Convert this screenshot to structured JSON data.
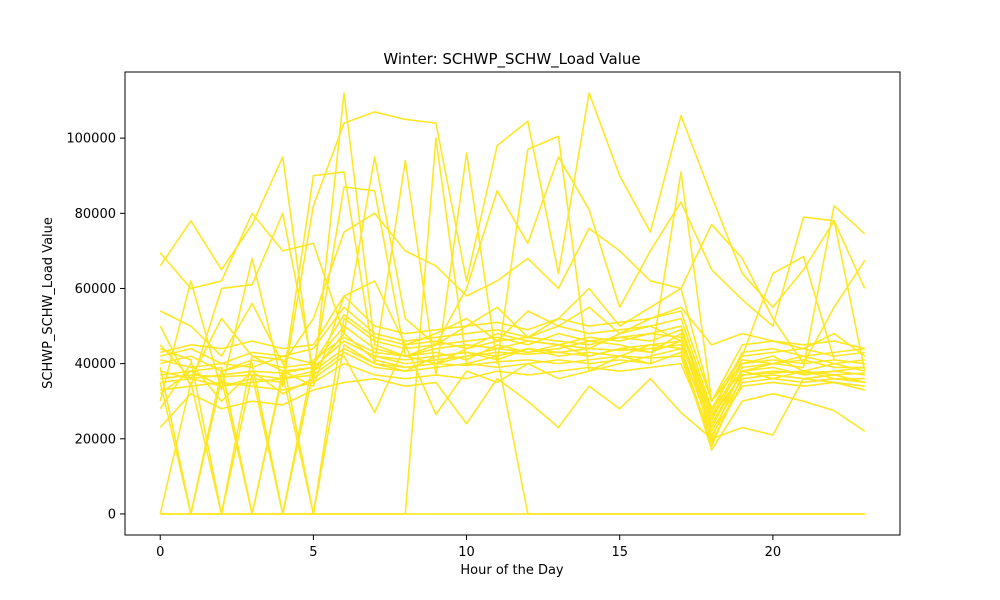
{
  "chart_data": {
    "type": "line",
    "title": "Winter: SCHWP_SCHW_Load Value",
    "xlabel": "Hour of the Day",
    "ylabel": "SCHWP_SCHW_Load Value",
    "xlim": [
      -1.15,
      24.15
    ],
    "ylim": [
      -5600,
      117600
    ],
    "x_ticks": [
      0,
      5,
      10,
      15,
      20
    ],
    "y_ticks": [
      0,
      20000,
      40000,
      60000,
      80000,
      100000
    ],
    "x": [
      0,
      1,
      2,
      3,
      4,
      5,
      6,
      7,
      8,
      9,
      10,
      11,
      12,
      13,
      14,
      15,
      16,
      17,
      18,
      19,
      20,
      21,
      22,
      23
    ],
    "line_color": "#fde725",
    "grid": false,
    "legend": "none",
    "series": [
      {
        "values": [
          38000,
          36000,
          37000,
          38000,
          37500,
          39000,
          46000,
          42000,
          40000,
          41000,
          42000,
          43000,
          42500,
          43000,
          44000,
          43500,
          44000,
          45000,
          26000,
          37000,
          38000,
          37500,
          38000,
          37000
        ]
      },
      {
        "values": [
          69500,
          60000,
          62000,
          80000,
          70000,
          72000,
          48000,
          95000,
          52000,
          45000,
          50000,
          55000,
          47000,
          52000,
          60000,
          50000,
          55000,
          60000,
          30000,
          40000,
          42000,
          38000,
          40000,
          38000
        ]
      },
      {
        "values": [
          66000,
          78000,
          65000,
          77000,
          95000,
          35000,
          112000,
          45000,
          42000,
          40000,
          44000,
          48000,
          46000,
          45000,
          44000,
          48000,
          50000,
          46000,
          28000,
          38000,
          40000,
          39000,
          82000,
          74500
        ]
      },
      {
        "values": [
          0,
          0,
          0,
          0,
          0,
          0,
          0,
          0,
          0,
          100000,
          40000,
          42000,
          0,
          0,
          0,
          0,
          0,
          0,
          0,
          0,
          0,
          0,
          0,
          0
        ]
      },
      {
        "values": [
          0,
          0,
          0,
          0,
          0,
          0,
          0,
          0,
          0,
          0,
          0,
          0,
          0,
          0,
          0,
          0,
          0,
          0,
          0,
          0,
          0,
          0,
          0,
          0
        ]
      },
      {
        "values": [
          35000,
          0,
          36000,
          0,
          37000,
          0,
          45000,
          40000,
          38000,
          42000,
          43000,
          41000,
          44000,
          42000,
          43000,
          42000,
          45000,
          44000,
          22000,
          36000,
          37000,
          36000,
          37000,
          35000
        ]
      },
      {
        "values": [
          0,
          35000,
          0,
          37000,
          0,
          38000,
          48000,
          41000,
          39000,
          40000,
          42000,
          44000,
          43000,
          45000,
          42000,
          44000,
          43000,
          46000,
          24000,
          38000,
          36000,
          38000,
          36000,
          36000
        ]
      },
      {
        "values": [
          30000,
          62000,
          33000,
          68000,
          34000,
          82000,
          104000,
          107000,
          105000,
          104000,
          62000,
          98000,
          104500,
          64000,
          112000,
          90000,
          75000,
          106000,
          84500,
          64000,
          55000,
          65000,
          78000,
          60000
        ]
      },
      {
        "values": [
          32000,
          38000,
          34000,
          36000,
          35000,
          90000,
          91000,
          40000,
          94000,
          37000,
          96000,
          40000,
          97000,
          100500,
          38000,
          42000,
          40000,
          91000,
          30000,
          42000,
          64000,
          68500,
          41000,
          40000
        ]
      },
      {
        "values": [
          50000,
          34000,
          60000,
          61000,
          80000,
          38000,
          87000,
          86000,
          42000,
          45000,
          60000,
          86000,
          72000,
          95000,
          81000,
          55000,
          70000,
          83000,
          65000,
          57000,
          50000,
          79000,
          78000,
          38000
        ]
      },
      {
        "values": [
          54000,
          50000,
          42000,
          56000,
          40000,
          52000,
          75000,
          80000,
          70000,
          66000,
          58000,
          62000,
          68000,
          60000,
          76000,
          70000,
          62000,
          60000,
          77000,
          68000,
          52000,
          40000,
          55000,
          67500
        ]
      },
      {
        "values": [
          45000,
          36000,
          52000,
          42000,
          38000,
          34000,
          58000,
          62000,
          45000,
          48000,
          52000,
          46000,
          54000,
          50000,
          55000,
          48000,
          52000,
          55000,
          45000,
          48000,
          46000,
          44000,
          48000,
          42000
        ]
      },
      {
        "values": [
          28000,
          40000,
          30000,
          38000,
          32000,
          36000,
          42000,
          27000,
          45000,
          26500,
          38000,
          35000,
          40000,
          36000,
          38000,
          40000,
          42000,
          44000,
          17000,
          30000,
          32000,
          30000,
          27500,
          22000
        ]
      },
      {
        "values": [
          23000,
          32000,
          28000,
          30000,
          29000,
          33000,
          35000,
          36000,
          34000,
          35000,
          24000,
          36000,
          30000,
          23000,
          34000,
          28000,
          36000,
          27000,
          20000,
          23000,
          21000,
          36000,
          35000,
          33000
        ]
      },
      {
        "values": [
          40000,
          42000,
          38000,
          41000,
          39000,
          40000,
          50000,
          44000,
          42000,
          43000,
          41000,
          45000,
          43000,
          44000,
          46000,
          45000,
          43000,
          48000,
          20000,
          39000,
          40000,
          41000,
          39000,
          39000
        ]
      },
      {
        "values": [
          36000,
          37000,
          36500,
          37000,
          36000,
          38000,
          44000,
          40000,
          39000,
          40000,
          39500,
          40500,
          41000,
          40000,
          41000,
          42000,
          41500,
          42000,
          18000,
          37000,
          37500,
          38000,
          37000,
          37500
        ]
      },
      {
        "values": [
          42000,
          44000,
          40000,
          43000,
          42000,
          44000,
          55000,
          48000,
          46000,
          47000,
          48000,
          49000,
          47000,
          50000,
          48000,
          49000,
          50000,
          52000,
          28000,
          42000,
          43000,
          44000,
          42000,
          43000
        ]
      },
      {
        "values": [
          33000,
          34000,
          35000,
          34000,
          33000,
          35000,
          40000,
          37000,
          36000,
          37000,
          36000,
          38000,
          37000,
          38000,
          39000,
          38000,
          39000,
          40000,
          21000,
          34000,
          35000,
          34000,
          35000,
          34000
        ]
      },
      {
        "values": [
          39000,
          0,
          38000,
          40000,
          0,
          41000,
          47000,
          43000,
          42000,
          44000,
          45000,
          44000,
          46000,
          45000,
          47000,
          46000,
          48000,
          47000,
          25000,
          40000,
          41000,
          40000,
          41000,
          40000
        ]
      },
      {
        "values": [
          44000,
          41000,
          0,
          42000,
          41000,
          0,
          52000,
          46000,
          44000,
          45000,
          46000,
          47000,
          45000,
          48000,
          46000,
          47000,
          48000,
          50000,
          27000,
          43000,
          44000,
          42000,
          43000,
          44000
        ]
      },
      {
        "values": [
          37000,
          38000,
          39000,
          0,
          38000,
          39000,
          46000,
          42000,
          41000,
          42000,
          43000,
          42000,
          44000,
          43000,
          42000,
          44000,
          45000,
          46000,
          23000,
          38000,
          39000,
          37000,
          38000,
          39000
        ]
      },
      {
        "values": [
          41000,
          39000,
          40000,
          39000,
          42000,
          40000,
          53000,
          47000,
          45000,
          46000,
          44000,
          46000,
          47000,
          46000,
          45000,
          47000,
          46000,
          49000,
          26000,
          41000,
          40000,
          42000,
          40000,
          41000
        ]
      },
      {
        "values": [
          35000,
          36000,
          34000,
          35000,
          36000,
          37000,
          43000,
          39000,
          38000,
          39000,
          40000,
          39000,
          40000,
          41000,
          40000,
          41000,
          40000,
          43000,
          19000,
          35000,
          36000,
          35000,
          36000,
          35000
        ]
      },
      {
        "values": [
          43000,
          45000,
          44000,
          46000,
          44000,
          45000,
          58000,
          50000,
          48000,
          49000,
          50000,
          51000,
          49000,
          52000,
          50000,
          51000,
          52000,
          54000,
          30000,
          45000,
          46000,
          45000,
          46000,
          44000
        ]
      }
    ]
  }
}
